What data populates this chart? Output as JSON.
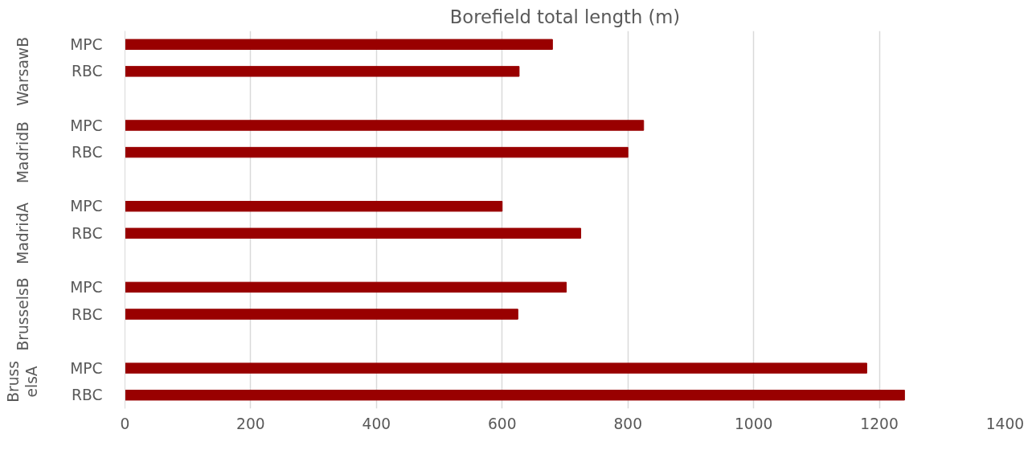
{
  "chart_data": {
    "type": "bar",
    "orientation": "horizontal",
    "title": "Borefield total length (m)",
    "categories": [
      "MPC",
      "RBC",
      null,
      "MPC",
      "RBC",
      null,
      "MPC",
      "RBC",
      null,
      "MPC",
      "RBC",
      null,
      "MPC",
      "RBC"
    ],
    "values": [
      680,
      627,
      null,
      825,
      800,
      null,
      600,
      725,
      null,
      702,
      625,
      null,
      1180,
      1240
    ],
    "color": "#990000",
    "annotations": [
      "WarsawB",
      "MadridB",
      "MadridA",
      "BrusselsB",
      "BrusselsA"
    ],
    "xlim": [
      0,
      1400
    ],
    "xticks": [
      0,
      200,
      400,
      600,
      800,
      1000,
      1200,
      1400
    ],
    "grid": "x"
  }
}
